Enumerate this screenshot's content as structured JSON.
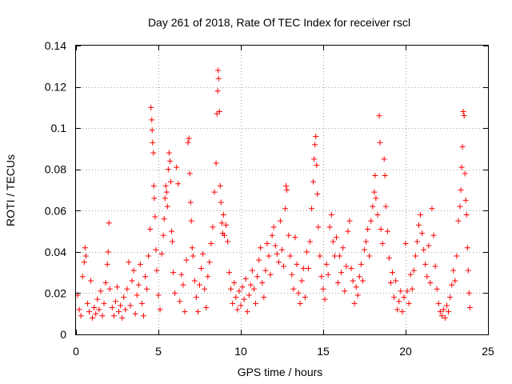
{
  "chart_data": {
    "type": "scatter",
    "title": "Day 261 of 2018, Rate Of TEC Index for receiver rscl",
    "xlabel": "GPS time / hours",
    "ylabel": "ROTI / TECUs",
    "xlim": [
      0,
      25
    ],
    "ylim": [
      0,
      0.14
    ],
    "xticks": [
      0,
      5,
      10,
      15,
      20,
      25
    ],
    "yticks": [
      0,
      0.02,
      0.04,
      0.06,
      0.08,
      0.1,
      0.12,
      0.14
    ],
    "xtick_labels": [
      "0",
      "5",
      "10",
      "15",
      "20",
      "25"
    ],
    "ytick_labels": [
      "0",
      "0.02",
      "0.04",
      "0.06",
      "0.08",
      "0.1",
      "0.12",
      "0.14"
    ],
    "grid": true,
    "marker": "+",
    "color": "#ff0000",
    "series": [
      {
        "name": "ROTI",
        "points": [
          [
            0.1,
            0.019
          ],
          [
            0.2,
            0.012
          ],
          [
            0.3,
            0.009
          ],
          [
            0.4,
            0.028
          ],
          [
            0.5,
            0.035
          ],
          [
            0.55,
            0.042
          ],
          [
            0.6,
            0.038
          ],
          [
            0.7,
            0.015
          ],
          [
            0.8,
            0.011
          ],
          [
            0.9,
            0.026
          ],
          [
            1.0,
            0.008
          ],
          [
            1.1,
            0.013
          ],
          [
            1.2,
            0.01
          ],
          [
            1.3,
            0.017
          ],
          [
            1.4,
            0.012
          ],
          [
            1.5,
            0.021
          ],
          [
            1.6,
            0.009
          ],
          [
            1.7,
            0.015
          ],
          [
            1.8,
            0.025
          ],
          [
            1.9,
            0.034
          ],
          [
            1.95,
            0.04
          ],
          [
            2.0,
            0.054
          ],
          [
            2.05,
            0.022
          ],
          [
            2.2,
            0.013
          ],
          [
            2.3,
            0.009
          ],
          [
            2.4,
            0.016
          ],
          [
            2.5,
            0.023
          ],
          [
            2.6,
            0.011
          ],
          [
            2.7,
            0.014
          ],
          [
            2.8,
            0.008
          ],
          [
            2.9,
            0.018
          ],
          [
            3.0,
            0.012
          ],
          [
            3.1,
            0.022
          ],
          [
            3.2,
            0.035
          ],
          [
            3.3,
            0.014
          ],
          [
            3.4,
            0.026
          ],
          [
            3.5,
            0.031
          ],
          [
            3.6,
            0.01
          ],
          [
            3.7,
            0.019
          ],
          [
            3.8,
            0.024
          ],
          [
            3.9,
            0.034
          ],
          [
            4.0,
            0.015
          ],
          [
            4.1,
            0.009
          ],
          [
            4.2,
            0.028
          ],
          [
            4.3,
            0.022
          ],
          [
            4.4,
            0.038
          ],
          [
            4.5,
            0.051
          ],
          [
            4.55,
            0.11
          ],
          [
            4.6,
            0.104
          ],
          [
            4.62,
            0.099
          ],
          [
            4.65,
            0.093
          ],
          [
            4.7,
            0.088
          ],
          [
            4.72,
            0.072
          ],
          [
            4.75,
            0.066
          ],
          [
            4.8,
            0.057
          ],
          [
            4.85,
            0.041
          ],
          [
            4.9,
            0.031
          ],
          [
            5.0,
            0.019
          ],
          [
            5.1,
            0.012
          ],
          [
            5.2,
            0.039
          ],
          [
            5.3,
            0.048
          ],
          [
            5.35,
            0.056
          ],
          [
            5.4,
            0.066
          ],
          [
            5.45,
            0.072
          ],
          [
            5.5,
            0.069
          ],
          [
            5.55,
            0.062
          ],
          [
            5.6,
            0.08
          ],
          [
            5.65,
            0.088
          ],
          [
            5.7,
            0.084
          ],
          [
            5.75,
            0.074
          ],
          [
            5.8,
            0.05
          ],
          [
            5.85,
            0.045
          ],
          [
            5.9,
            0.03
          ],
          [
            6.0,
            0.02
          ],
          [
            6.1,
            0.081
          ],
          [
            6.2,
            0.073
          ],
          [
            6.3,
            0.016
          ],
          [
            6.4,
            0.029
          ],
          [
            6.5,
            0.024
          ],
          [
            6.6,
            0.011
          ],
          [
            6.7,
            0.036
          ],
          [
            6.8,
            0.093
          ],
          [
            6.85,
            0.095
          ],
          [
            6.9,
            0.078
          ],
          [
            6.95,
            0.064
          ],
          [
            7.0,
            0.055
          ],
          [
            7.05,
            0.042
          ],
          [
            7.1,
            0.038
          ],
          [
            7.2,
            0.026
          ],
          [
            7.3,
            0.018
          ],
          [
            7.4,
            0.011
          ],
          [
            7.5,
            0.024
          ],
          [
            7.6,
            0.032
          ],
          [
            7.7,
            0.039
          ],
          [
            7.8,
            0.022
          ],
          [
            7.9,
            0.013
          ],
          [
            8.0,
            0.028
          ],
          [
            8.1,
            0.035
          ],
          [
            8.2,
            0.044
          ],
          [
            8.3,
            0.052
          ],
          [
            8.4,
            0.069
          ],
          [
            8.5,
            0.083
          ],
          [
            8.55,
            0.107
          ],
          [
            8.6,
            0.118
          ],
          [
            8.62,
            0.128
          ],
          [
            8.65,
            0.124
          ],
          [
            8.7,
            0.108
          ],
          [
            8.75,
            0.072
          ],
          [
            8.8,
            0.064
          ],
          [
            8.85,
            0.054
          ],
          [
            8.9,
            0.049
          ],
          [
            8.95,
            0.058
          ],
          [
            9.0,
            0.048
          ],
          [
            9.1,
            0.053
          ],
          [
            9.2,
            0.045
          ],
          [
            9.3,
            0.03
          ],
          [
            9.4,
            0.022
          ],
          [
            9.5,
            0.015
          ],
          [
            9.6,
            0.025
          ],
          [
            9.7,
            0.018
          ],
          [
            9.8,
            0.012
          ],
          [
            9.9,
            0.021
          ],
          [
            10.0,
            0.014
          ],
          [
            10.1,
            0.023
          ],
          [
            10.2,
            0.017
          ],
          [
            10.3,
            0.027
          ],
          [
            10.4,
            0.011
          ],
          [
            10.5,
            0.019
          ],
          [
            10.6,
            0.024
          ],
          [
            10.7,
            0.031
          ],
          [
            10.8,
            0.022
          ],
          [
            10.9,
            0.015
          ],
          [
            11.0,
            0.028
          ],
          [
            11.1,
            0.036
          ],
          [
            11.2,
            0.042
          ],
          [
            11.3,
            0.025
          ],
          [
            11.4,
            0.018
          ],
          [
            11.5,
            0.031
          ],
          [
            11.6,
            0.044
          ],
          [
            11.7,
            0.038
          ],
          [
            11.8,
            0.029
          ],
          [
            11.9,
            0.048
          ],
          [
            12.0,
            0.052
          ],
          [
            12.1,
            0.043
          ],
          [
            12.2,
            0.039
          ],
          [
            12.3,
            0.035
          ],
          [
            12.4,
            0.055
          ],
          [
            12.5,
            0.041
          ],
          [
            12.6,
            0.033
          ],
          [
            12.7,
            0.061
          ],
          [
            12.75,
            0.072
          ],
          [
            12.8,
            0.07
          ],
          [
            12.9,
            0.048
          ],
          [
            13.0,
            0.038
          ],
          [
            13.1,
            0.029
          ],
          [
            13.2,
            0.022
          ],
          [
            13.3,
            0.047
          ],
          [
            13.4,
            0.034
          ],
          [
            13.5,
            0.02
          ],
          [
            13.6,
            0.015
          ],
          [
            13.7,
            0.026
          ],
          [
            13.8,
            0.032
          ],
          [
            13.9,
            0.018
          ],
          [
            14.0,
            0.04
          ],
          [
            14.1,
            0.032
          ],
          [
            14.2,
            0.045
          ],
          [
            14.3,
            0.061
          ],
          [
            14.4,
            0.074
          ],
          [
            14.45,
            0.085
          ],
          [
            14.5,
            0.092
          ],
          [
            14.55,
            0.096
          ],
          [
            14.6,
            0.082
          ],
          [
            14.65,
            0.068
          ],
          [
            14.7,
            0.052
          ],
          [
            14.8,
            0.038
          ],
          [
            14.9,
            0.028
          ],
          [
            15.0,
            0.022
          ],
          [
            15.1,
            0.017
          ],
          [
            15.2,
            0.034
          ],
          [
            15.3,
            0.029
          ],
          [
            15.4,
            0.052
          ],
          [
            15.5,
            0.058
          ],
          [
            15.6,
            0.045
          ],
          [
            15.7,
            0.038
          ],
          [
            15.8,
            0.047
          ],
          [
            15.9,
            0.025
          ],
          [
            16.0,
            0.038
          ],
          [
            16.1,
            0.03
          ],
          [
            16.2,
            0.042
          ],
          [
            16.3,
            0.021
          ],
          [
            16.4,
            0.033
          ],
          [
            16.5,
            0.05
          ],
          [
            16.6,
            0.055
          ],
          [
            16.7,
            0.032
          ],
          [
            16.8,
            0.026
          ],
          [
            16.9,
            0.015
          ],
          [
            17.0,
            0.023
          ],
          [
            17.1,
            0.019
          ],
          [
            17.2,
            0.028
          ],
          [
            17.3,
            0.034
          ],
          [
            17.4,
            0.026
          ],
          [
            17.5,
            0.041
          ],
          [
            17.6,
            0.045
          ],
          [
            17.7,
            0.051
          ],
          [
            17.8,
            0.038
          ],
          [
            17.9,
            0.055
          ],
          [
            18.0,
            0.062
          ],
          [
            18.1,
            0.069
          ],
          [
            18.15,
            0.077
          ],
          [
            18.2,
            0.066
          ],
          [
            18.3,
            0.058
          ],
          [
            18.4,
            0.106
          ],
          [
            18.45,
            0.093
          ],
          [
            18.5,
            0.051
          ],
          [
            18.6,
            0.044
          ],
          [
            18.7,
            0.085
          ],
          [
            18.75,
            0.077
          ],
          [
            18.8,
            0.062
          ],
          [
            18.9,
            0.05
          ],
          [
            19.0,
            0.037
          ],
          [
            19.1,
            0.025
          ],
          [
            19.2,
            0.03
          ],
          [
            19.3,
            0.018
          ],
          [
            19.4,
            0.026
          ],
          [
            19.5,
            0.012
          ],
          [
            19.6,
            0.016
          ],
          [
            19.7,
            0.021
          ],
          [
            19.8,
            0.011
          ],
          [
            19.9,
            0.018
          ],
          [
            20.0,
            0.044
          ],
          [
            20.1,
            0.021
          ],
          [
            20.2,
            0.015
          ],
          [
            20.3,
            0.029
          ],
          [
            20.4,
            0.022
          ],
          [
            20.5,
            0.031
          ],
          [
            20.6,
            0.038
          ],
          [
            20.7,
            0.045
          ],
          [
            20.8,
            0.053
          ],
          [
            20.9,
            0.058
          ],
          [
            21.0,
            0.049
          ],
          [
            21.1,
            0.041
          ],
          [
            21.2,
            0.034
          ],
          [
            21.3,
            0.028
          ],
          [
            21.4,
            0.043
          ],
          [
            21.5,
            0.025
          ],
          [
            21.6,
            0.061
          ],
          [
            21.7,
            0.048
          ],
          [
            21.8,
            0.033
          ],
          [
            21.9,
            0.022
          ],
          [
            22.0,
            0.015
          ],
          [
            22.1,
            0.011
          ],
          [
            22.2,
            0.009
          ],
          [
            22.3,
            0.012
          ],
          [
            22.4,
            0.008
          ],
          [
            22.5,
            0.014
          ],
          [
            22.6,
            0.011
          ],
          [
            22.7,
            0.018
          ],
          [
            22.8,
            0.024
          ],
          [
            22.9,
            0.031
          ],
          [
            23.0,
            0.026
          ],
          [
            23.1,
            0.038
          ],
          [
            23.2,
            0.055
          ],
          [
            23.3,
            0.062
          ],
          [
            23.35,
            0.07
          ],
          [
            23.4,
            0.081
          ],
          [
            23.45,
            0.091
          ],
          [
            23.5,
            0.108
          ],
          [
            23.55,
            0.106
          ],
          [
            23.6,
            0.078
          ],
          [
            23.65,
            0.065
          ],
          [
            23.7,
            0.058
          ],
          [
            23.75,
            0.042
          ],
          [
            23.8,
            0.031
          ],
          [
            23.85,
            0.02
          ],
          [
            23.9,
            0.013
          ]
        ]
      }
    ]
  }
}
